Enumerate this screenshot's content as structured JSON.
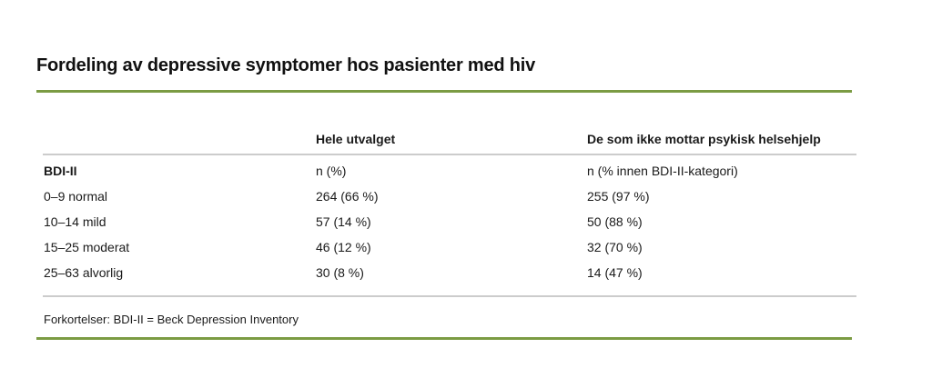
{
  "page": {
    "title": "Fordeling av depressive symptomer hos pasienter med hiv"
  },
  "table": {
    "columns": [
      {
        "label": ""
      },
      {
        "label": "Hele utvalget"
      },
      {
        "label": "De som ikke mottar psykisk helsehjelp"
      }
    ],
    "subheader": {
      "col1": "BDI-II",
      "col2": "n (%)",
      "col3": "n (% innen BDI-II-kategori)"
    },
    "rows": [
      {
        "category": "0–9 normal",
        "hele_utvalget": "264 (66 %)",
        "ikke_mottar_hjelp": "255 (97 %)"
      },
      {
        "category": "10–14 mild",
        "hele_utvalget": "57 (14 %)",
        "ikke_mottar_hjelp": "50 (88 %)"
      },
      {
        "category": "15–25 moderat",
        "hele_utvalget": "46 (12 %)",
        "ikke_mottar_hjelp": "32 (70 %)"
      },
      {
        "category": "25–63 alvorlig",
        "hele_utvalget": "30 (8 %)",
        "ikke_mottar_hjelp": "14 (47 %)"
      }
    ],
    "footnote": "Forkortelser: BDI-II = Beck Depression Inventory"
  },
  "colors": {
    "accent_green": "#7b9b43",
    "divider_gray": "#cccccc",
    "text": "#1a1a1a"
  }
}
